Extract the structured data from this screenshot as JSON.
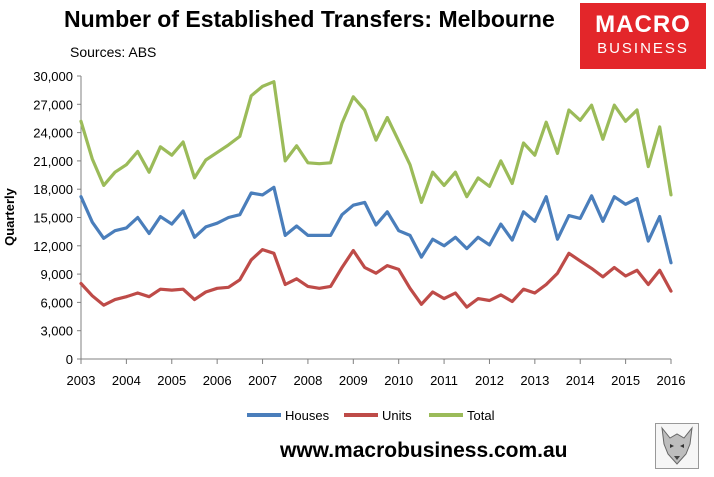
{
  "header": {
    "title": "Number of Established Transfers: Melbourne",
    "subtitle": "Sources: ABS"
  },
  "logo": {
    "line1": "MACRO",
    "line2": "BUSINESS",
    "color": "#e3262a"
  },
  "footer": {
    "website": "www.macrobusiness.com.au"
  },
  "chart_data": {
    "type": "line",
    "title": "Number of Established Transfers: Melbourne",
    "subtitle": "Sources: ABS",
    "ylabel": "Quarterly",
    "xlabel": "",
    "ylim": [
      0,
      30000
    ],
    "y_ticks": [
      "0",
      "3,000",
      "6,000",
      "9,000",
      "12,000",
      "15,000",
      "18,000",
      "21,000",
      "24,000",
      "27,000",
      "30,000"
    ],
    "x_tick_labels": [
      "2003",
      "2004",
      "2005",
      "2006",
      "2007",
      "2008",
      "2009",
      "2010",
      "2011",
      "2012",
      "2013",
      "2014",
      "2015",
      "2016"
    ],
    "x_range": [
      2003,
      2016
    ],
    "grid": false,
    "legend_position": "bottom",
    "series": [
      {
        "name": "Houses",
        "color": "#4a7ebb",
        "values": [
          17200,
          14500,
          12800,
          13600,
          13900,
          15000,
          13300,
          15100,
          14300,
          15700,
          12900,
          14000,
          14400,
          15000,
          15300,
          17600,
          17400,
          18200,
          13100,
          14100,
          13100,
          13100,
          13100,
          15300,
          16300,
          16600,
          14200,
          15600,
          13600,
          13100,
          10800,
          12700,
          12000,
          12900,
          11700,
          12900,
          12100,
          14300,
          12600,
          15600,
          14600,
          17200,
          12700,
          15200,
          14900,
          17300,
          14600,
          17200,
          16400,
          17000,
          12500,
          15100,
          10200
        ],
        "x": [
          2003.0,
          2003.25,
          2003.5,
          2003.75,
          2004.0,
          2004.25,
          2004.5,
          2004.75,
          2005.0,
          2005.25,
          2005.5,
          2005.75,
          2006.0,
          2006.25,
          2006.5,
          2006.75,
          2007.0,
          2007.25,
          2007.5,
          2007.75,
          2008.0,
          2008.25,
          2008.5,
          2008.75,
          2009.0,
          2009.25,
          2009.5,
          2009.75,
          2010.0,
          2010.25,
          2010.5,
          2010.75,
          2011.0,
          2011.25,
          2011.5,
          2011.75,
          2012.0,
          2012.25,
          2012.5,
          2012.75,
          2013.0,
          2013.25,
          2013.5,
          2013.75,
          2014.0,
          2014.25,
          2014.5,
          2014.75,
          2015.0,
          2015.25,
          2015.5,
          2015.75,
          2016.0
        ]
      },
      {
        "name": "Units",
        "color": "#be4b48",
        "values": [
          8000,
          6700,
          5700,
          6300,
          6600,
          7000,
          6600,
          7400,
          7300,
          7400,
          6300,
          7100,
          7500,
          7600,
          8400,
          10500,
          11600,
          11200,
          7900,
          8500,
          7700,
          7500,
          7700,
          9700,
          11500,
          9700,
          9100,
          9900,
          9500,
          7500,
          5800,
          7100,
          6400,
          7000,
          5500,
          6400,
          6200,
          6800,
          6100,
          7400,
          7000,
          7900,
          9100,
          11200,
          10400,
          9600,
          8700,
          9700,
          8800,
          9400,
          7900,
          9400,
          7200
        ],
        "x": [
          2003.0,
          2003.25,
          2003.5,
          2003.75,
          2004.0,
          2004.25,
          2004.5,
          2004.75,
          2005.0,
          2005.25,
          2005.5,
          2005.75,
          2006.0,
          2006.25,
          2006.5,
          2006.75,
          2007.0,
          2007.25,
          2007.5,
          2007.75,
          2008.0,
          2008.25,
          2008.5,
          2008.75,
          2009.0,
          2009.25,
          2009.5,
          2009.75,
          2010.0,
          2010.25,
          2010.5,
          2010.75,
          2011.0,
          2011.25,
          2011.5,
          2011.75,
          2012.0,
          2012.25,
          2012.5,
          2012.75,
          2013.0,
          2013.25,
          2013.5,
          2013.75,
          2014.0,
          2014.25,
          2014.5,
          2014.75,
          2015.0,
          2015.25,
          2015.5,
          2015.75,
          2016.0
        ]
      },
      {
        "name": "Total",
        "color": "#9bbb59",
        "values": [
          25200,
          21200,
          18400,
          19800,
          20600,
          22000,
          19800,
          22500,
          21600,
          23000,
          19200,
          21100,
          21900,
          22700,
          23600,
          27900,
          28900,
          29400,
          21000,
          22600,
          20800,
          20700,
          20800,
          25000,
          27800,
          26400,
          23200,
          25600,
          23100,
          20600,
          16600,
          19800,
          18400,
          19800,
          17200,
          19200,
          18300,
          21000,
          18600,
          22900,
          21600,
          25100,
          21800,
          26400,
          25300,
          26900,
          23300,
          26900,
          25200,
          26400,
          20400,
          24600,
          17400
        ],
        "x": [
          2003.0,
          2003.25,
          2003.5,
          2003.75,
          2004.0,
          2004.25,
          2004.5,
          2004.75,
          2005.0,
          2005.25,
          2005.5,
          2005.75,
          2006.0,
          2006.25,
          2006.5,
          2006.75,
          2007.0,
          2007.25,
          2007.5,
          2007.75,
          2008.0,
          2008.25,
          2008.5,
          2008.75,
          2009.0,
          2009.25,
          2009.5,
          2009.75,
          2010.0,
          2010.25,
          2010.5,
          2010.75,
          2011.0,
          2011.25,
          2011.5,
          2011.75,
          2012.0,
          2012.25,
          2012.5,
          2012.75,
          2013.0,
          2013.25,
          2013.5,
          2013.75,
          2014.0,
          2014.25,
          2014.5,
          2014.75,
          2015.0,
          2015.25,
          2015.5,
          2015.75,
          2016.0
        ]
      }
    ]
  }
}
